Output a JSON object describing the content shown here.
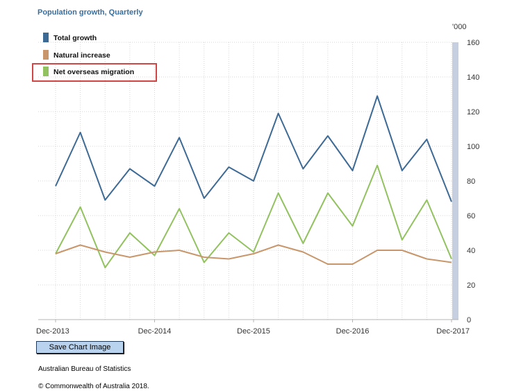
{
  "title": "Population growth, Quarterly",
  "unit_label": "'000",
  "save_button_label": "Save Chart Image",
  "source": "Australian Bureau of Statistics",
  "copyright": "© Commonwealth of Australia 2018.",
  "colors": {
    "total": "#3d6a95",
    "natural": "#c8966a",
    "nom": "#92c25f",
    "axis_band": "#c5cfe0",
    "highlight": "#d04545"
  },
  "chart_data": {
    "type": "line",
    "title": "Population growth, Quarterly",
    "ylabel": "'000",
    "ylim": [
      0,
      160
    ],
    "yticks": [
      0,
      20,
      40,
      60,
      80,
      100,
      120,
      140,
      160
    ],
    "x_tick_labels": [
      "Dec-2013",
      "Dec-2014",
      "Dec-2015",
      "Dec-2016",
      "Dec-2017"
    ],
    "legend_position": "top-left",
    "highlighted_legend_entry": "Net overseas migration",
    "grid": true,
    "series": [
      {
        "name": "Total growth",
        "color_key": "total",
        "values": [
          77,
          108,
          69,
          87,
          77,
          105,
          70,
          88,
          80,
          119,
          87,
          106,
          86,
          129,
          86,
          104,
          68
        ]
      },
      {
        "name": "Natural increase",
        "color_key": "natural",
        "values": [
          38,
          43,
          39,
          36,
          39,
          40,
          36,
          35,
          38,
          43,
          39,
          32,
          32,
          40,
          40,
          35,
          33
        ]
      },
      {
        "name": "Net overseas migration",
        "color_key": "nom",
        "values": [
          38,
          65,
          30,
          50,
          37,
          64,
          33,
          50,
          39,
          73,
          44,
          73,
          54,
          89,
          46,
          69,
          35
        ]
      }
    ]
  }
}
